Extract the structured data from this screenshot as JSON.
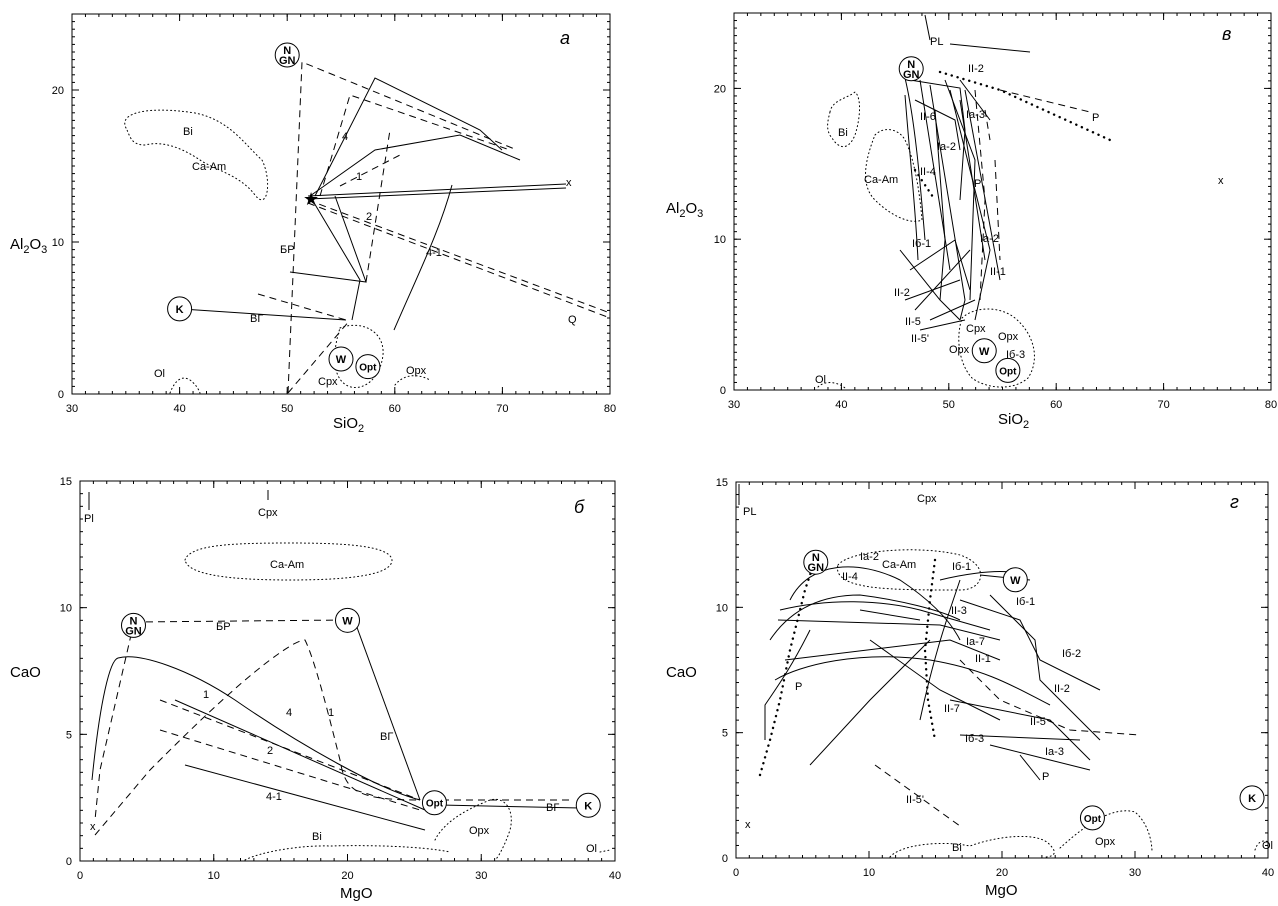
{
  "chart_data": [
    {
      "type": "scatter",
      "panel_letter": "а",
      "xlabel": "SiO2",
      "ylabel": "Al2O3",
      "xlim": [
        30,
        80
      ],
      "ylim": [
        0,
        25
      ],
      "x_ticks": [
        30,
        40,
        50,
        60,
        70,
        80
      ],
      "y_ticks": [
        0,
        10,
        20
      ],
      "points": [
        {
          "label": "N GN",
          "x": 50,
          "y": 22.3
        },
        {
          "label": "K",
          "x": 40,
          "y": 5.6
        },
        {
          "label": "W",
          "x": 55,
          "y": 2.3
        },
        {
          "label": "Opt",
          "x": 57.5,
          "y": 1.8
        }
      ],
      "annotations": [
        "Bi",
        "Ca-Am",
        "x",
        "4",
        "1",
        "2",
        "4-1",
        "БР",
        "ВГ",
        "Q",
        "Ol",
        "Cpx",
        "Opx"
      ]
    },
    {
      "type": "scatter",
      "panel_letter": "в",
      "xlabel": "SiO2",
      "ylabel": "Al2O3",
      "xlim": [
        30,
        80
      ],
      "ylim": [
        0,
        25
      ],
      "x_ticks": [
        30,
        40,
        50,
        60,
        70,
        80
      ],
      "y_ticks": [
        0,
        10,
        20
      ],
      "points": [
        {
          "label": "N GN",
          "x": 46.5,
          "y": 21.3
        },
        {
          "label": "W",
          "x": 53.3,
          "y": 2.6
        },
        {
          "label": "Opt",
          "x": 55.5,
          "y": 1.3
        }
      ],
      "annotations": [
        "PL",
        "II-2",
        "Bi",
        "P",
        "II-6",
        "Ia-3",
        "Ia-2",
        "Ca-Am",
        "II-4",
        "P",
        "x",
        "Iб-1",
        "Ia-2",
        "II-1",
        "II-2",
        "II-5",
        "Cpx",
        "Opx",
        "II-5'",
        "Opx",
        "Iб-3",
        "Ol"
      ]
    },
    {
      "type": "scatter",
      "panel_letter": "б",
      "xlabel": "MgO",
      "ylabel": "CaO",
      "xlim": [
        0,
        40
      ],
      "ylim": [
        0,
        15
      ],
      "x_ticks": [
        0,
        10,
        20,
        30,
        40
      ],
      "y_ticks": [
        0,
        5,
        10,
        15
      ],
      "points": [
        {
          "label": "N GN",
          "x": 4,
          "y": 9.3
        },
        {
          "label": "W",
          "x": 20,
          "y": 9.5
        },
        {
          "label": "Opt",
          "x": 26.5,
          "y": 2.3
        },
        {
          "label": "K",
          "x": 38,
          "y": 2.2
        }
      ],
      "annotations": [
        "Pl",
        "Cpx",
        "Ca-Am",
        "БР",
        "1",
        "4",
        "1",
        "2",
        "4-1",
        "ВГ",
        "ВГ",
        "x",
        "Bi",
        "Opx",
        "Ol"
      ]
    },
    {
      "type": "scatter",
      "panel_letter": "г",
      "xlabel": "MgO",
      "ylabel": "CaO",
      "xlim": [
        0,
        40
      ],
      "ylim": [
        0,
        15
      ],
      "x_ticks": [
        0,
        10,
        20,
        30,
        40
      ],
      "y_ticks": [
        0,
        5,
        10,
        15
      ],
      "points": [
        {
          "label": "N GN",
          "x": 6,
          "y": 11.8
        },
        {
          "label": "W",
          "x": 21,
          "y": 11.1
        },
        {
          "label": "Opt",
          "x": 26.8,
          "y": 1.6
        },
        {
          "label": "K",
          "x": 38.8,
          "y": 2.4
        }
      ],
      "annotations": [
        "PL",
        "Cpx",
        "Ia-2",
        "II-4",
        "Ca-Am",
        "Iб-1",
        "Iб-1",
        "II-3",
        "Ia-7",
        "II-1",
        "Iб-2",
        "II-2",
        "P",
        "II-7",
        "Iб-3",
        "II-5",
        "Ia-3",
        "P",
        "II-5'",
        "x",
        "Bi",
        "Opx",
        "Ol"
      ]
    }
  ]
}
